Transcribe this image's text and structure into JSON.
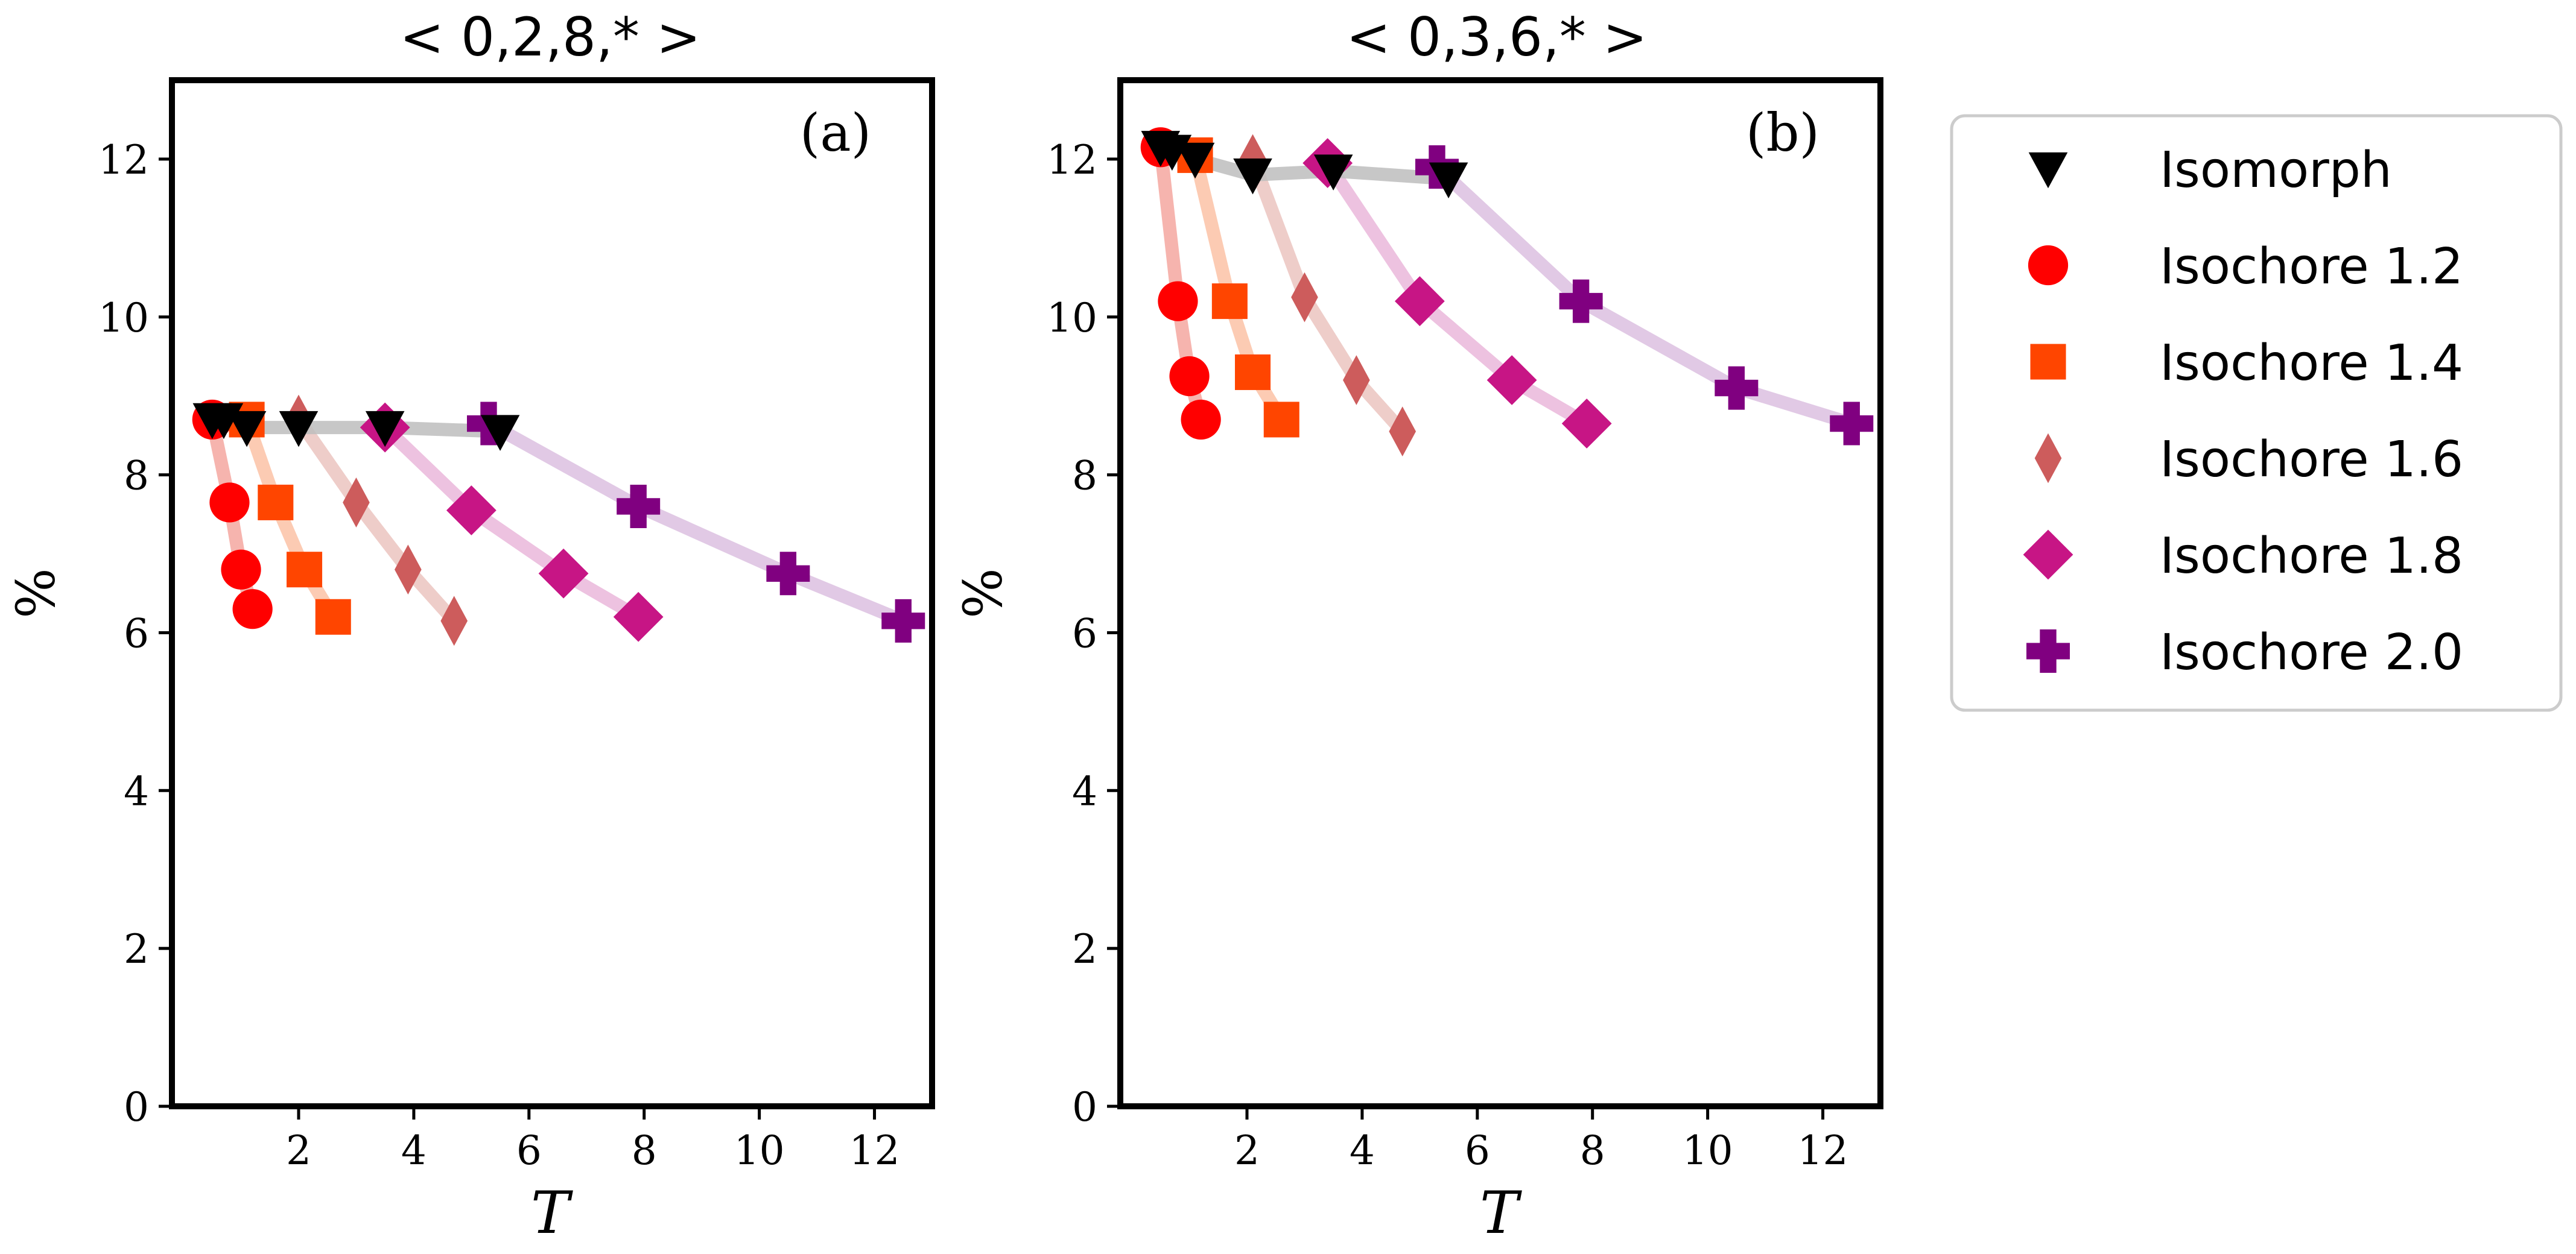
{
  "chart_data": [
    {
      "type": "line",
      "panel": "a",
      "title": "< 0,2,8,* >",
      "panel_label": "(a)",
      "xlabel": "T",
      "ylabel": "%",
      "xlim": [
        -0.2,
        13.0
      ],
      "ylim": [
        0,
        13
      ],
      "xticks": [
        2,
        4,
        6,
        8,
        10,
        12
      ],
      "yticks": [
        0,
        2,
        4,
        6,
        8,
        10,
        12
      ],
      "series": [
        {
          "name": "Isomorph",
          "x": [
            0.5,
            0.7,
            1.1,
            2.0,
            3.5,
            5.5
          ],
          "y": [
            8.7,
            8.7,
            8.6,
            8.6,
            8.6,
            8.55
          ]
        },
        {
          "name": "Isochore 1.2",
          "x": [
            0.5,
            0.8,
            1.0,
            1.2
          ],
          "y": [
            8.7,
            7.65,
            6.8,
            6.3
          ]
        },
        {
          "name": "Isochore 1.4",
          "x": [
            1.1,
            1.6,
            2.1,
            2.6
          ],
          "y": [
            8.7,
            7.65,
            6.8,
            6.2
          ]
        },
        {
          "name": "Isochore 1.6",
          "x": [
            2.0,
            3.0,
            3.9,
            4.7
          ],
          "y": [
            8.7,
            7.65,
            6.8,
            6.15
          ]
        },
        {
          "name": "Isochore 1.8",
          "x": [
            3.5,
            5.0,
            6.6,
            7.9
          ],
          "y": [
            8.6,
            7.55,
            6.75,
            6.2
          ]
        },
        {
          "name": "Isochore 2.0",
          "x": [
            5.3,
            7.9,
            10.5,
            12.5
          ],
          "y": [
            8.65,
            7.6,
            6.75,
            6.15
          ]
        }
      ]
    },
    {
      "type": "line",
      "panel": "b",
      "title": "< 0,3,6,* >",
      "panel_label": "(b)",
      "xlabel": "T",
      "ylabel": "%",
      "xlim": [
        -0.2,
        13.0
      ],
      "ylim": [
        0,
        13
      ],
      "xticks": [
        2,
        4,
        6,
        8,
        10,
        12
      ],
      "yticks": [
        0,
        2,
        4,
        6,
        8,
        10,
        12
      ],
      "series": [
        {
          "name": "Isomorph",
          "x": [
            0.5,
            0.7,
            1.1,
            2.1,
            3.5,
            5.5
          ],
          "y": [
            12.15,
            12.1,
            12.0,
            11.8,
            11.85,
            11.75
          ]
        },
        {
          "name": "Isochore 1.2",
          "x": [
            0.5,
            0.8,
            1.0,
            1.2
          ],
          "y": [
            12.15,
            10.2,
            9.25,
            8.7
          ]
        },
        {
          "name": "Isochore 1.4",
          "x": [
            1.1,
            1.7,
            2.1,
            2.6
          ],
          "y": [
            12.05,
            10.2,
            9.3,
            8.7
          ]
        },
        {
          "name": "Isochore 1.6",
          "x": [
            2.1,
            3.0,
            3.9,
            4.7
          ],
          "y": [
            12.0,
            10.25,
            9.2,
            8.55
          ]
        },
        {
          "name": "Isochore 1.8",
          "x": [
            3.4,
            5.0,
            6.6,
            7.9
          ],
          "y": [
            11.95,
            10.2,
            9.2,
            8.65
          ]
        },
        {
          "name": "Isochore 2.0",
          "x": [
            5.3,
            7.8,
            10.5,
            12.5
          ],
          "y": [
            11.9,
            10.2,
            9.1,
            8.65
          ]
        }
      ]
    }
  ],
  "legend": {
    "position": "right",
    "entries": [
      {
        "label": "Isomorph",
        "marker": "triangle-down",
        "color": "#000000",
        "line_color": "#bdbdbd"
      },
      {
        "label": "Isochore 1.2",
        "marker": "circle",
        "color": "#ff0000",
        "line_color": "#f4a7a0"
      },
      {
        "label": "Isochore 1.4",
        "marker": "square",
        "color": "#ff4500",
        "line_color": "#fbc2a6"
      },
      {
        "label": "Isochore 1.6",
        "marker": "thin-diamond",
        "color": "#cd5c5c",
        "line_color": "#ebc4c0"
      },
      {
        "label": "Isochore 1.8",
        "marker": "diamond",
        "color": "#c71585",
        "line_color": "#eab7da"
      },
      {
        "label": "Isochore 2.0",
        "marker": "plus",
        "color": "#800080",
        "line_color": "#dcbfe0"
      }
    ]
  }
}
